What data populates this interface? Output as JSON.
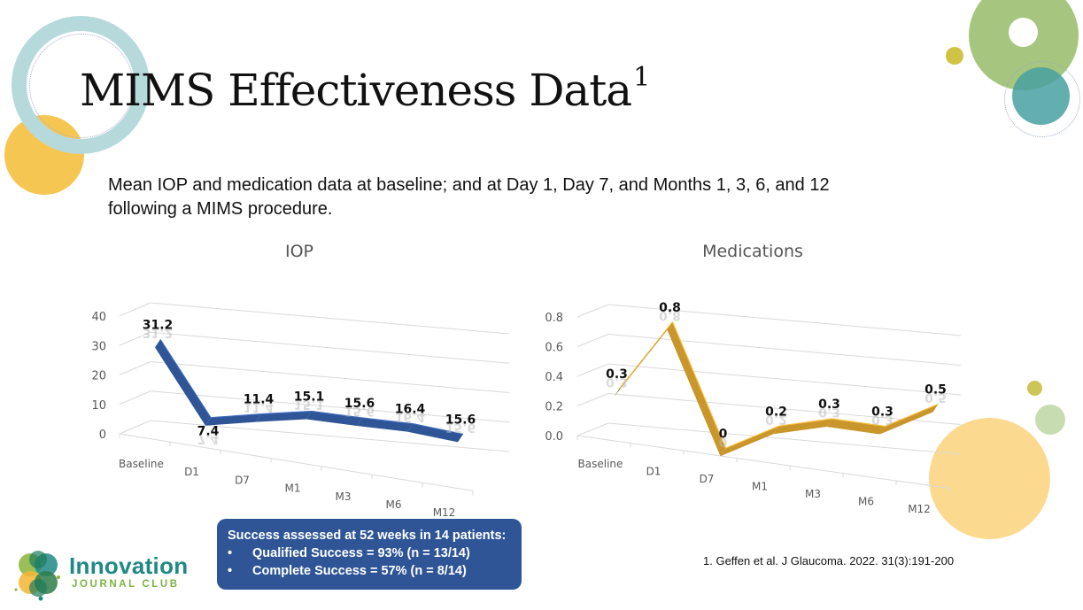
{
  "slide": {
    "title": "MIMS Effectiveness Data",
    "title_superscript": "1",
    "subtitle_line1": "Mean IOP and medication data at baseline; and at Day 1, Day 7, and Months 1, 3, 6, and 12",
    "subtitle_line2": "following a MIMS procedure."
  },
  "success_box": {
    "heading": "Success assessed at 52 weeks in 14 patients:",
    "bullets": [
      {
        "marker": "•",
        "text": "Qualified Success = 93% (n = 13/14)"
      },
      {
        "marker": "•",
        "text": "Complete Success = 57% (n = 8/14)"
      }
    ],
    "color": "#2f5597"
  },
  "citation": "1. Geffen et al. J Glaucoma. 2022. 31(3):191-200",
  "logo": {
    "name": "Innovation",
    "subtitle": "JOURNAL CLUB"
  },
  "chart_data": [
    {
      "type": "line",
      "title": "IOP",
      "categories": [
        "Baseline",
        "D1",
        "D7",
        "M1",
        "M3",
        "M6",
        "M12"
      ],
      "values": [
        31.2,
        7.4,
        11.4,
        15.1,
        15.6,
        16.4,
        15.6
      ],
      "data_labels": [
        "31.2",
        "7.4",
        "11.4",
        "15.1",
        "15.6",
        "16.4",
        "15.6"
      ],
      "yticks": [
        "0",
        "10",
        "20",
        "30",
        "40"
      ],
      "ylim": [
        0,
        40
      ],
      "xlabel": "",
      "ylabel": "",
      "grid": true,
      "legend": "none",
      "color": "#2f5597",
      "style": "3d-ribbon"
    },
    {
      "type": "line",
      "title": "Medications",
      "categories": [
        "Baseline",
        "D1",
        "D7",
        "M1",
        "M3",
        "M6",
        "M12"
      ],
      "values": [
        0.3,
        0.8,
        0,
        0.2,
        0.3,
        0.3,
        0.5
      ],
      "data_labels": [
        "0.3",
        "0.8",
        "0",
        "0.2",
        "0.3",
        "0.3",
        "0.5"
      ],
      "yticks": [
        "0.0",
        "0.2",
        "0.4",
        "0.6",
        "0.8"
      ],
      "ylim": [
        0,
        0.8
      ],
      "xlabel": "",
      "ylabel": "",
      "grid": true,
      "legend": "none",
      "color": "#c9962c",
      "style": "3d-ribbon"
    }
  ]
}
